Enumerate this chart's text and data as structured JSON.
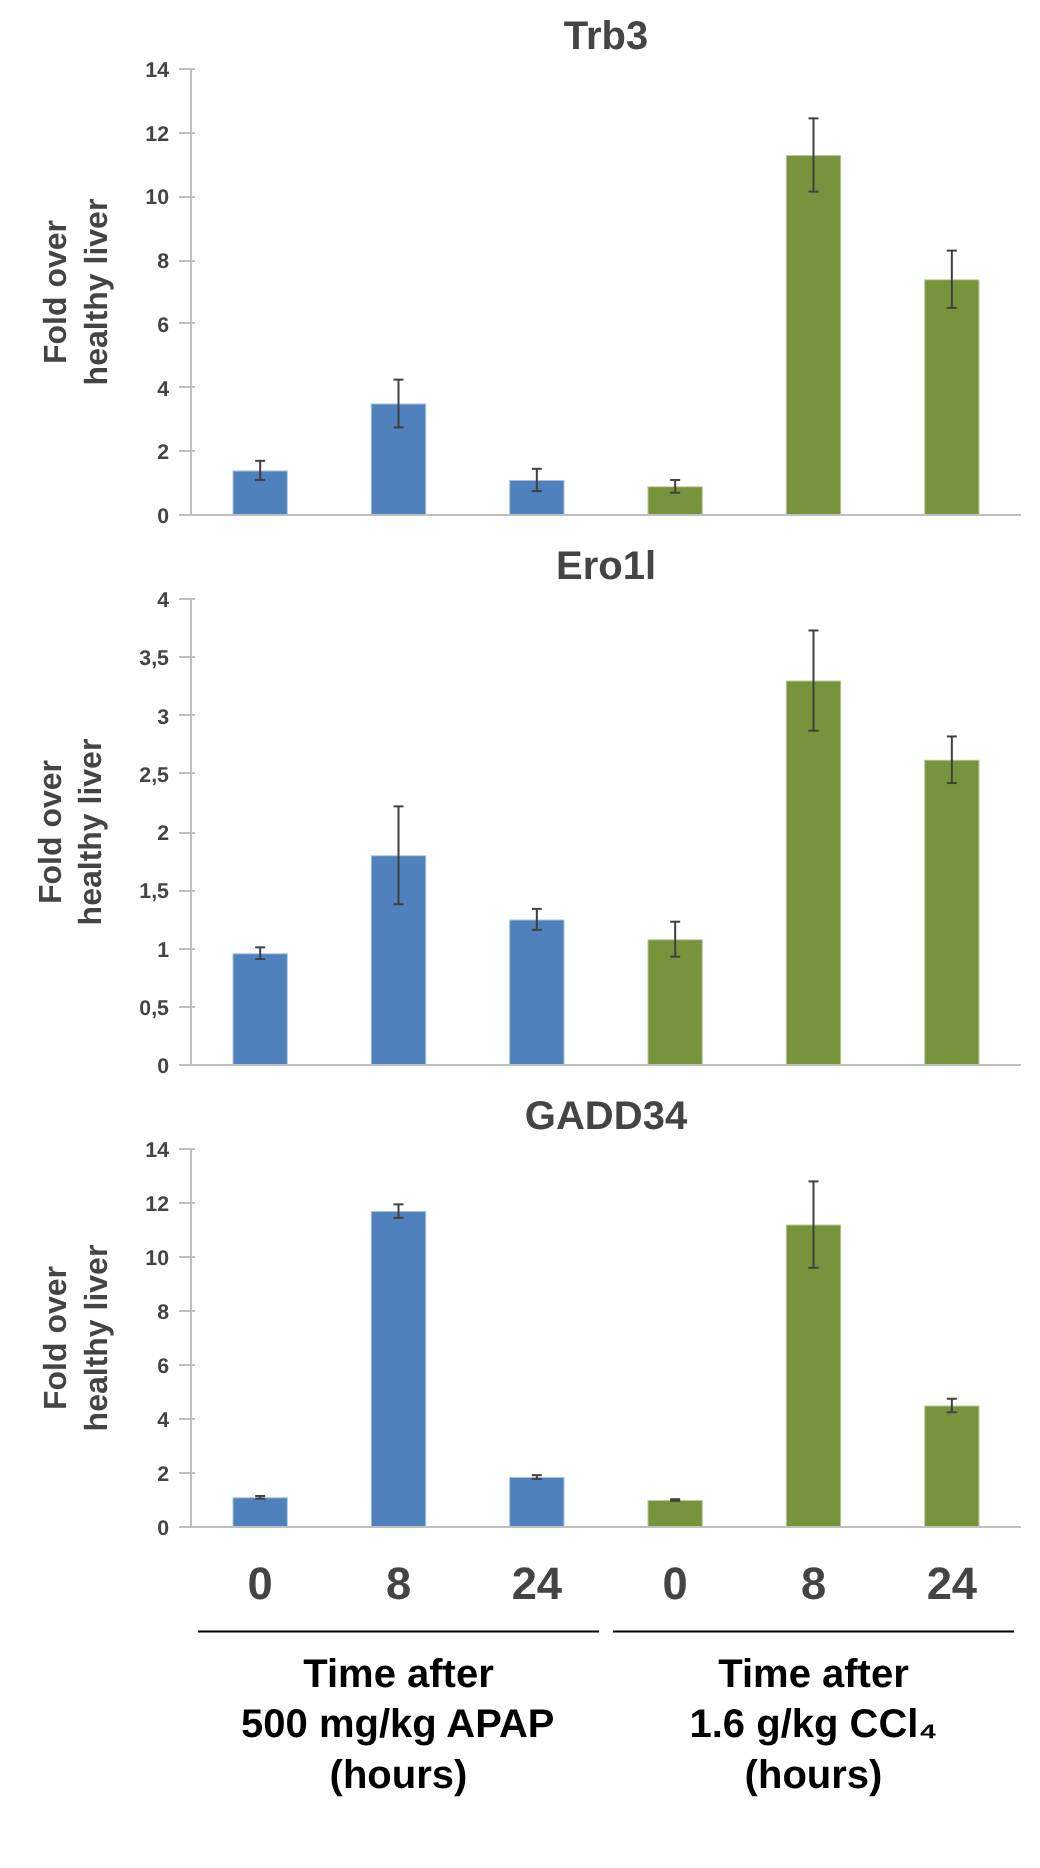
{
  "chart_data": [
    {
      "type": "bar",
      "title": "Trb3",
      "ylabel": "Fold over\nhealthy liver",
      "categories": [
        "0",
        "8",
        "24",
        "0",
        "8",
        "24"
      ],
      "tick_labels": "y",
      "values": [
        1.4,
        3.5,
        1.1,
        0.9,
        11.3,
        7.4
      ],
      "errors": [
        0.3,
        0.75,
        0.35,
        0.2,
        1.15,
        0.9
      ],
      "colors": [
        "#4f81bd",
        "#4f81bd",
        "#4f81bd",
        "#77933c",
        "#77933c",
        "#77933c"
      ],
      "ylim": [
        0,
        14
      ],
      "yticks": [
        0,
        2,
        4,
        6,
        8,
        10,
        12,
        14
      ],
      "grid": false
    },
    {
      "type": "bar",
      "title": "Ero1l",
      "ylabel": "Fold over\nhealthy liver",
      "categories": [
        "0",
        "8",
        "24",
        "0",
        "8",
        "24"
      ],
      "tick_labels": "y",
      "values": [
        0.96,
        1.8,
        1.25,
        1.08,
        3.3,
        2.62
      ],
      "errors": [
        0.05,
        0.42,
        0.09,
        0.15,
        0.43,
        0.2
      ],
      "colors": [
        "#4f81bd",
        "#4f81bd",
        "#4f81bd",
        "#77933c",
        "#77933c",
        "#77933c"
      ],
      "ylim": [
        0,
        4
      ],
      "yticks": [
        0,
        {
          "value": 0.5,
          "label": "0,5"
        },
        1,
        {
          "value": 1.5,
          "label": "1,5"
        },
        2,
        {
          "value": 2.5,
          "label": "2,5"
        },
        3,
        {
          "value": 3.5,
          "label": "3,5"
        },
        4
      ],
      "grid": false
    },
    {
      "type": "bar",
      "title": "GADD34",
      "ylabel": "Fold over\nhealthy liver",
      "categories": [
        "0",
        "8",
        "24",
        "0",
        "8",
        "24"
      ],
      "values": [
        1.1,
        11.7,
        1.85,
        1.0,
        11.2,
        4.5
      ],
      "errors": [
        0.05,
        0.25,
        0.07,
        0.03,
        1.6,
        0.25
      ],
      "colors": [
        "#4f81bd",
        "#4f81bd",
        "#4f81bd",
        "#77933c",
        "#77933c",
        "#77933c"
      ],
      "ylim": [
        0,
        14
      ],
      "yticks": [
        0,
        2,
        4,
        6,
        8,
        10,
        12,
        14
      ],
      "grid": false,
      "annotations": [
        "Time after\n500 mg/kg APAP\n(hours)",
        "Time after\n1.6 g/kg CCl₄\n(hours)"
      ]
    }
  ]
}
